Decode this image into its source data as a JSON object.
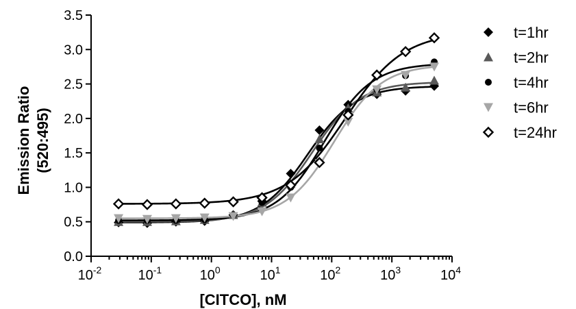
{
  "chart_data": {
    "type": "scatter",
    "title": "",
    "xlabel": "[CITCO], nM",
    "ylabel": "Emission Ratio",
    "ylabel_line2": "(520:495)",
    "x_scale": "log",
    "xlim": [
      0.01,
      10000
    ],
    "ylim": [
      0,
      3.5
    ],
    "x_ticks": [
      {
        "base": "10",
        "exp": "-2"
      },
      {
        "base": "10",
        "exp": "-1"
      },
      {
        "base": "10",
        "exp": "0"
      },
      {
        "base": "10",
        "exp": "1"
      },
      {
        "base": "10",
        "exp": "2"
      },
      {
        "base": "10",
        "exp": "3"
      },
      {
        "base": "10",
        "exp": "4"
      }
    ],
    "y_ticks": [
      "0.0",
      "0.5",
      "1.0",
      "1.5",
      "2.0",
      "2.5",
      "3.0",
      "3.5"
    ],
    "grid": false,
    "legend_position": "right",
    "x": [
      0.0286,
      0.0857,
      0.257,
      0.771,
      2.31,
      6.94,
      20.8,
      62.5,
      187.5,
      562.5,
      1687.5,
      5062.5
    ],
    "series": [
      {
        "name": "t=1hr",
        "marker": "diamond-filled",
        "color": "#000000",
        "values": [
          0.49,
          0.48,
          0.5,
          0.51,
          0.6,
          0.8,
          1.2,
          1.83,
          2.2,
          2.35,
          2.4,
          2.47
        ],
        "fit": {
          "bottom": 0.49,
          "top": 2.47,
          "ec50": 40,
          "hill": 1.1
        }
      },
      {
        "name": "t=2hr",
        "marker": "triangle-up",
        "color": "#595959",
        "values": [
          0.5,
          0.5,
          0.51,
          0.53,
          0.6,
          0.78,
          1.05,
          1.7,
          2.15,
          2.38,
          2.45,
          2.55
        ],
        "fit": {
          "bottom": 0.5,
          "top": 2.53,
          "ec50": 48,
          "hill": 1.1
        }
      },
      {
        "name": "t=4hr",
        "marker": "circle-filled",
        "color": "#000000",
        "values": [
          0.52,
          0.52,
          0.52,
          0.53,
          0.6,
          0.78,
          1.0,
          1.57,
          2.1,
          2.42,
          2.62,
          2.82
        ],
        "fit": {
          "bottom": 0.52,
          "top": 2.8,
          "ec50": 75,
          "hill": 1.1
        }
      },
      {
        "name": "t=6hr",
        "marker": "triangle-down",
        "color": "#a6a6a6",
        "values": [
          0.55,
          0.54,
          0.55,
          0.56,
          0.58,
          0.65,
          0.85,
          1.35,
          1.95,
          2.42,
          2.63,
          2.75
        ],
        "fit": {
          "bottom": 0.55,
          "top": 2.78,
          "ec50": 110,
          "hill": 1.1
        }
      },
      {
        "name": "t=24hr",
        "marker": "diamond-open",
        "color": "#000000",
        "values": [
          0.76,
          0.75,
          0.76,
          0.77,
          0.79,
          0.85,
          1.03,
          1.36,
          2.05,
          2.63,
          2.97,
          3.17
        ],
        "fit": {
          "bottom": 0.76,
          "top": 3.25,
          "ec50": 170,
          "hill": 0.9
        }
      }
    ]
  }
}
